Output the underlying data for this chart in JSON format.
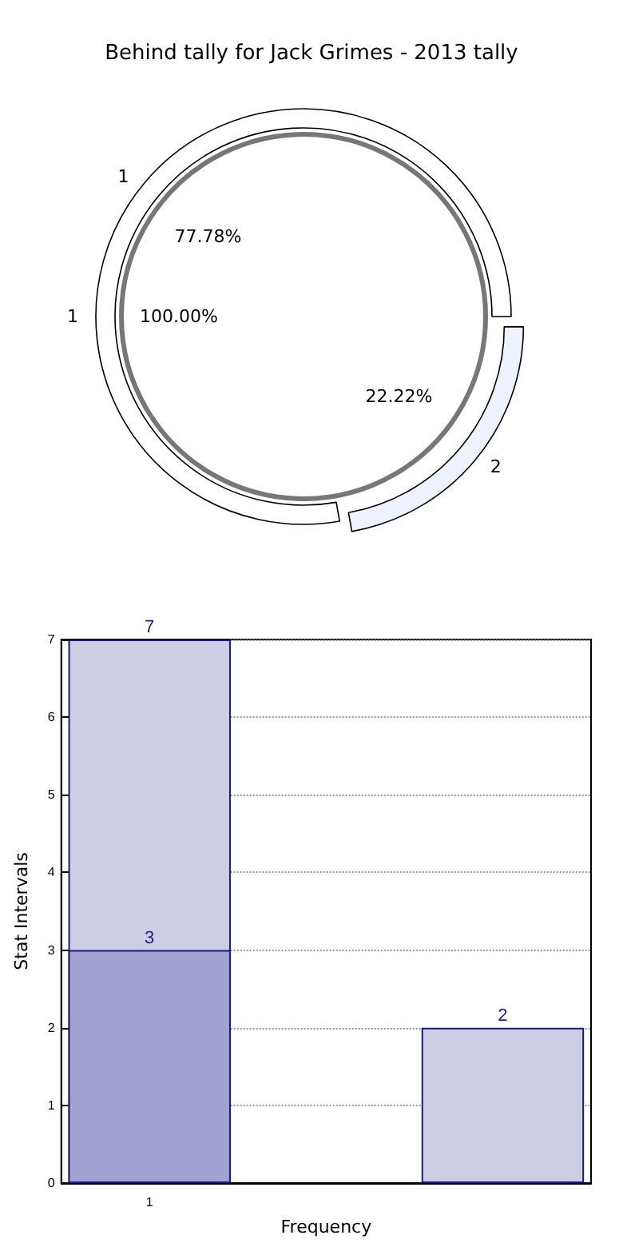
{
  "chart_data": [
    {
      "type": "donut",
      "title": "Behind tally for Jack Grimes - 2013 tally",
      "categories": [
        "1",
        "2"
      ],
      "values": [
        77.78,
        22.22
      ],
      "colors": [
        "#ffffff",
        "#eef2fc"
      ],
      "value_labels": [
        "77.78%",
        "22.22%"
      ]
    },
    {
      "type": "pie",
      "categories": [
        "1"
      ],
      "values": [
        100
      ],
      "colors": [
        "#ffffff"
      ],
      "value_labels": [
        "100.00%"
      ]
    },
    {
      "type": "bar",
      "categories": [
        "1",
        null,
        null
      ],
      "xlabel": "Frequency",
      "ylabel": "Stat Intervals",
      "ylim": [
        0,
        7
      ],
      "yticks": [
        0,
        1,
        2,
        3,
        4,
        5,
        6,
        7
      ],
      "grid": true,
      "data_labels": true,
      "series": [
        {
          "color": "#cdcde5",
          "values": [
            7,
            null,
            2
          ]
        },
        {
          "color": "#a3a3d1",
          "values": [
            3,
            null,
            null
          ]
        }
      ]
    }
  ]
}
